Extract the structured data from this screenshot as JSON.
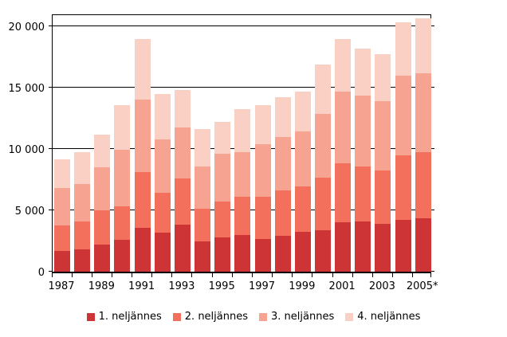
{
  "chart_data": {
    "type": "bar",
    "stacked": true,
    "title": "",
    "xlabel": "",
    "ylabel": "",
    "grid": true,
    "legend_position": "bottom",
    "categories": [
      "1987",
      "1988",
      "1989",
      "1990",
      "1991",
      "1992",
      "1993",
      "1994",
      "1995",
      "1996",
      "1997",
      "1998",
      "1999",
      "2000",
      "2001",
      "2002",
      "2003",
      "2004",
      "2005"
    ],
    "x_tick_labels": [
      "1987",
      "1989",
      "1991",
      "1993",
      "1995",
      "1997",
      "1999",
      "2001",
      "2003",
      "2005*"
    ],
    "y_ticks": [
      0,
      5000,
      10000,
      15000,
      20000
    ],
    "y_tick_labels": [
      "0",
      "5 000",
      "10 000",
      "15 000",
      "20 000"
    ],
    "ylim": [
      0,
      21100
    ],
    "series": [
      {
        "name": "1. neljännes",
        "color": "#CC3435",
        "values": [
          1700,
          1850,
          2200,
          2600,
          3550,
          3200,
          3850,
          2500,
          2800,
          3000,
          2650,
          2900,
          3250,
          3400,
          4050,
          4100,
          3900,
          4250,
          4350
        ]
      },
      {
        "name": "2. neljännes",
        "color": "#F3705C",
        "values": [
          2050,
          2250,
          2800,
          2750,
          4550,
          3200,
          3750,
          2650,
          2900,
          3100,
          3450,
          3750,
          3700,
          4250,
          4800,
          4500,
          4350,
          5250,
          5400
        ]
      },
      {
        "name": "3. neljännes",
        "color": "#F6A392",
        "values": [
          3050,
          3050,
          3500,
          4600,
          5900,
          4350,
          4150,
          3400,
          3900,
          3650,
          4300,
          4300,
          4450,
          5200,
          5800,
          5750,
          5650,
          6450,
          6400
        ]
      },
      {
        "name": "4. neljännes",
        "color": "#FBD0C4",
        "values": [
          2350,
          2600,
          2700,
          3650,
          4950,
          3750,
          3050,
          3050,
          2600,
          3500,
          3150,
          3250,
          3300,
          4000,
          4300,
          3800,
          3850,
          4350,
          4500
        ]
      }
    ],
    "totals": [
      9150,
      9750,
      11200,
      13600,
      18950,
      14500,
      14800,
      11600,
      12200,
      13250,
      13550,
      14200,
      14700,
      16850,
      18950,
      18150,
      17750,
      20300,
      20650
    ],
    "axis_color": "#000000",
    "background_color": "#ffffff"
  }
}
